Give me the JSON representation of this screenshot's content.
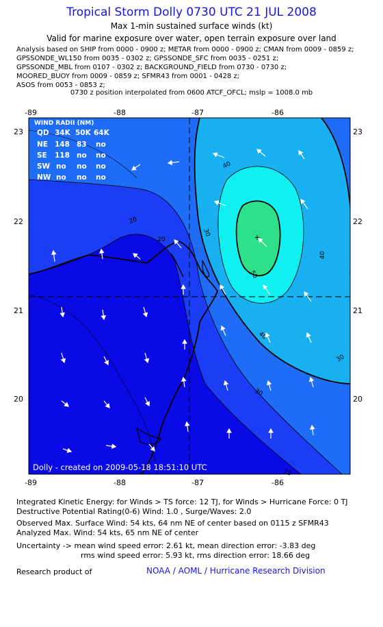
{
  "title": "Tropical Storm Dolly 0730 UTC 21 JUL 2008",
  "subtitle_1": "Max 1-min sustained surface winds (kt)",
  "subtitle_2": "Valid for marine exposure over water, open terrain exposure over land",
  "analysis_lines": [
    "Analysis based on  SHIP from 0000 - 0900 z;  METAR from 0000 - 0900 z;  CMAN from 0009 - 0859 z;",
    "GPSSONDE_WL150 from 0035 - 0302 z;  GPSSONDE_SFC from 0035 - 0251 z;",
    "GPSSONDE_MBL from 0107 - 0302 z;  BACKGROUND_FIELD from 0730 - 0730 z;",
    "MOORED_BUOY from 0009 - 0859 z;  SFMR43 from 0001 - 0428 z;",
    "ASOS from 0053 - 0853 z;"
  ],
  "position_note": "0730 z position interpolated from 0600 ATCF_OFCL; mslp = 1008.0 mb",
  "map": {
    "lon_ticks": [
      "-89",
      "-88",
      "-87",
      "-86"
    ],
    "lat_ticks": [
      "23",
      "22",
      "21",
      "20"
    ],
    "center": {
      "lon": -86.25,
      "lat": 21.82
    },
    "contour_labels": [
      "20",
      "30",
      "40",
      "50",
      "40",
      "40",
      "30",
      "20",
      "20",
      "30"
    ],
    "wind_radii": {
      "title": "WIND RADII (NM)",
      "header": [
        "QD",
        "34K",
        "50K",
        "64K"
      ],
      "rows": [
        [
          "NE",
          "148",
          "83",
          "no"
        ],
        [
          "SE",
          "118",
          "no",
          "no"
        ],
        [
          "SW",
          "no",
          "no",
          "no"
        ],
        [
          "NW",
          "no",
          "no",
          "no"
        ]
      ]
    },
    "credit": "Dolly - created on 2009-05-18 18:51:10 UTC",
    "colors": {
      "deep": "#0a0ae6",
      "band_20": "#1a3df5",
      "band_30": "#1f6cf6",
      "band_40": "#19b0f2",
      "band_50": "#10f0f0",
      "core": "#2ee08a"
    }
  },
  "footer_lines": [
    "Integrated Kinetic Energy:  for Winds > TS force: 12 TJ,  for Winds > Hurricane Force: 0 TJ",
    "Destructive Potential Rating(0-6)   Wind: 1.0 , Surge/Waves: 2.0",
    "Observed Max. Surface Wind: 54 kts, 64 nm NE of center based on 0115 z SFMR43",
    "Analyzed Max. Wind: 54 kts, 65 nm NE of center",
    "Uncertainty -> mean wind speed error: 2.61 kt,    mean direction error:  -3.83 deg",
    "rms wind speed error: 5.93 kt,   rms direction error: 18.66 deg"
  ],
  "research_label": "Research product of",
  "noaa": "NOAA / AOML / Hurricane Research Division"
}
